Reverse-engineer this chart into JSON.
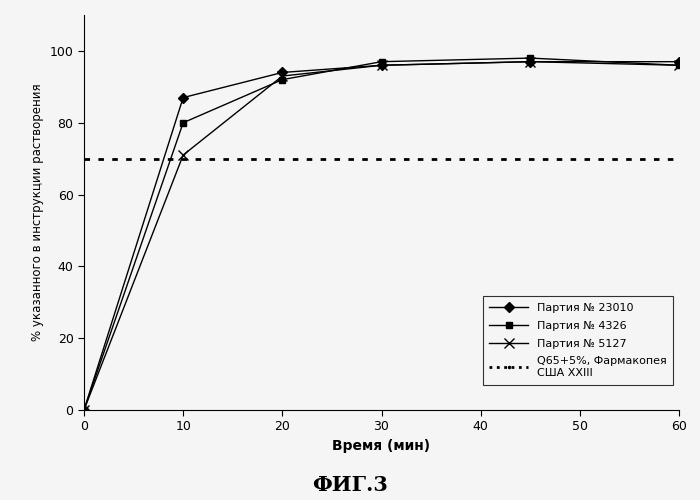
{
  "series": [
    {
      "label": "Партия № 23010",
      "x": [
        0,
        10,
        20,
        30,
        45,
        60
      ],
      "y": [
        0,
        87,
        94,
        96,
        97,
        97
      ],
      "color": "#000000",
      "marker": "D",
      "markersize": 5,
      "linestyle": "-"
    },
    {
      "label": "Партия № 4326",
      "x": [
        0,
        10,
        20,
        30,
        45,
        60
      ],
      "y": [
        0,
        80,
        92,
        97,
        98,
        96
      ],
      "color": "#000000",
      "marker": "s",
      "markersize": 5,
      "linestyle": "-"
    },
    {
      "label": "Партия № 5127",
      "x": [
        0,
        10,
        20,
        30,
        45,
        60
      ],
      "y": [
        0,
        71,
        93,
        96,
        97,
        96
      ],
      "color": "#000000",
      "marker": "x",
      "markersize": 7,
      "linestyle": "-"
    }
  ],
  "reference_line": {
    "y": 70,
    "color": "#000000",
    "linestyle": ":",
    "linewidth": 2.0,
    "label_line1": "Q65+5%, Фармакопея",
    "label_line2": "США XXIII"
  },
  "xlabel": "Время (мин)",
  "ylabel": "% указанного в инструкции растворения",
  "title": "ФИГ.3",
  "xlim": [
    0,
    60
  ],
  "ylim": [
    0,
    110
  ],
  "xticks": [
    0,
    10,
    20,
    30,
    40,
    50,
    60
  ],
  "yticks": [
    0,
    20,
    40,
    60,
    80,
    100
  ],
  "figsize": [
    7.0,
    5.0
  ],
  "dpi": 100,
  "background_color": "#f5f5f5"
}
